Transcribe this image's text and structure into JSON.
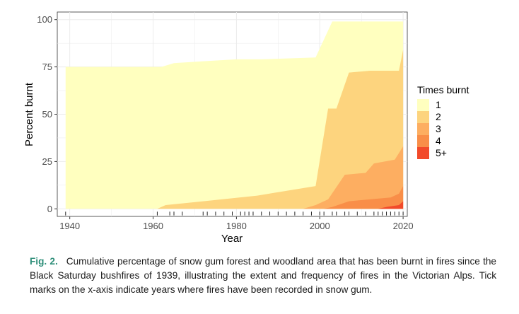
{
  "chart_data": {
    "type": "area",
    "stacking": "cumulative-threshold",
    "xlabel": "Year",
    "ylabel": "Percent burnt",
    "xlim": [
      1937,
      2021
    ],
    "ylim": [
      -4,
      104
    ],
    "x_ticks": [
      1940,
      1960,
      1980,
      2000,
      2020
    ],
    "y_ticks": [
      0,
      25,
      50,
      75,
      100
    ],
    "legend_title": "Times burnt",
    "legend_position": "right",
    "series": [
      {
        "name": "1",
        "color": "#ffffbf",
        "points": [
          [
            1939,
            75
          ],
          [
            1962,
            75
          ],
          [
            1965,
            77
          ],
          [
            1972,
            78
          ],
          [
            1980,
            79
          ],
          [
            1986,
            79
          ],
          [
            1999,
            80
          ],
          [
            2003,
            99
          ],
          [
            2007,
            99
          ],
          [
            2020,
            99
          ]
        ]
      },
      {
        "name": "2",
        "color": "#fdd47e",
        "points": [
          [
            1939,
            0
          ],
          [
            1961,
            0
          ],
          [
            1963,
            2
          ],
          [
            1972,
            4
          ],
          [
            1985,
            7
          ],
          [
            1999,
            12
          ],
          [
            2002,
            53
          ],
          [
            2004,
            53
          ],
          [
            2007,
            72
          ],
          [
            2012,
            73
          ],
          [
            2019,
            73
          ],
          [
            2020,
            84
          ]
        ]
      },
      {
        "name": "3",
        "color": "#fdae61",
        "points": [
          [
            1939,
            0
          ],
          [
            1996,
            0
          ],
          [
            1999,
            2
          ],
          [
            2002,
            5
          ],
          [
            2006,
            18
          ],
          [
            2011,
            19
          ],
          [
            2013,
            24
          ],
          [
            2018,
            26
          ],
          [
            2020,
            33
          ]
        ]
      },
      {
        "name": "4",
        "color": "#f98e48",
        "points": [
          [
            1939,
            0
          ],
          [
            2001,
            0
          ],
          [
            2003,
            1
          ],
          [
            2007,
            4
          ],
          [
            2012,
            5
          ],
          [
            2017,
            6
          ],
          [
            2019,
            8
          ],
          [
            2020,
            12
          ]
        ]
      },
      {
        "name": "5+",
        "color": "#f24a2a",
        "points": [
          [
            1939,
            0
          ],
          [
            2014,
            0
          ],
          [
            2016,
            1
          ],
          [
            2019,
            2
          ],
          [
            2020,
            4
          ]
        ]
      }
    ],
    "fire_years": [
      1939,
      1961,
      1964,
      1965,
      1967,
      1972,
      1973,
      1975,
      1977,
      1979,
      1981,
      1982,
      1983,
      1984,
      1986,
      1988,
      1990,
      1992,
      1994,
      1996,
      1998,
      2000,
      2001,
      2003,
      2004,
      2006,
      2007,
      2009,
      2011,
      2013,
      2014,
      2015,
      2016,
      2017,
      2018,
      2019,
      2020
    ]
  },
  "caption": {
    "label": "Fig. 2.",
    "text": "Cumulative percentage of snow gum forest and woodland area that has been burnt in fires since the Black Saturday bushfires of 1939, illustrating the extent and frequency of fires in the Victorian Alps. Tick marks on the x-axis indicate years where fires have been recorded in snow gum."
  }
}
